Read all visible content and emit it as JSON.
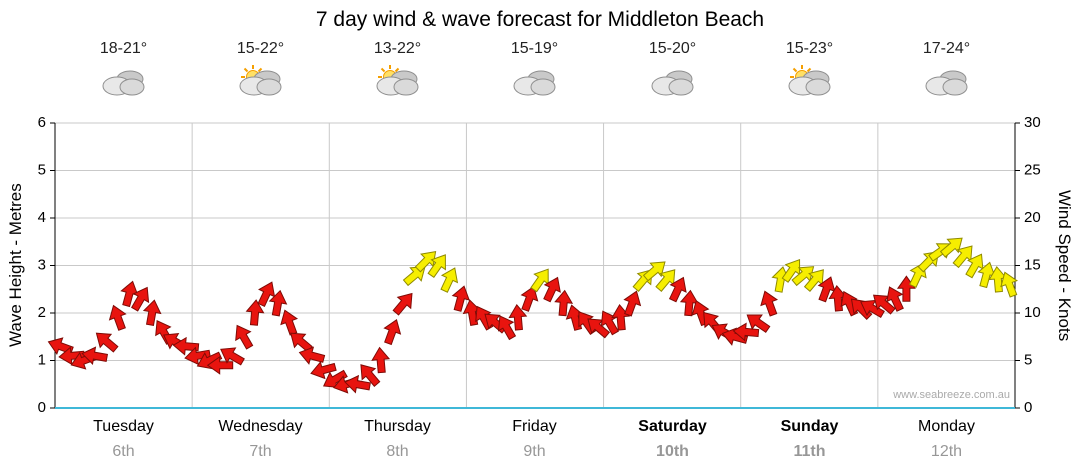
{
  "title": "7 day wind & wave forecast for Middleton Beach",
  "watermark": "www.seabreeze.com.au",
  "axes": {
    "left_label": "Wave Height - Metres",
    "right_label": "Wind Speed - Knots",
    "left_ticks": [
      "0",
      "1",
      "2",
      "3",
      "4",
      "5",
      "6"
    ],
    "right_ticks": [
      "0",
      "5",
      "10",
      "15",
      "20",
      "25",
      "30"
    ],
    "left_max_metres": 6,
    "right_max_knots": 30,
    "baseline_color": "#3fb8d8",
    "grid_color": "#c9c9c9",
    "axis_line_color": "#000000"
  },
  "days": [
    {
      "name": "Tuesday",
      "date": "6th",
      "temp": "18-21°",
      "icon": "cloudy",
      "emphasis": false
    },
    {
      "name": "Wednesday",
      "date": "7th",
      "temp": "15-22°",
      "icon": "partly-sunny",
      "emphasis": false
    },
    {
      "name": "Thursday",
      "date": "8th",
      "temp": "13-22°",
      "icon": "partly-sunny",
      "emphasis": false
    },
    {
      "name": "Friday",
      "date": "9th",
      "temp": "15-19°",
      "icon": "cloudy",
      "emphasis": false
    },
    {
      "name": "Saturday",
      "date": "10th",
      "temp": "15-20°",
      "icon": "cloudy",
      "emphasis": true
    },
    {
      "name": "Sunday",
      "date": "11th",
      "temp": "15-23°",
      "icon": "partly-sunny",
      "emphasis": true
    },
    {
      "name": "Monday",
      "date": "12th",
      "temp": "17-24°",
      "icon": "cloudy",
      "emphasis": false
    }
  ],
  "chart_data": {
    "type": "wind-arrows",
    "title": "7 day wind & wave forecast for Middleton Beach",
    "ylim_left_metres": [
      0,
      6
    ],
    "ylim_right_knots": [
      0,
      30
    ],
    "points_per_day": 12,
    "dir_convention": "degrees; 0 = arrow pointing right (east), counterclockwise positive",
    "colors": {
      "light": "#e8140f",
      "light_stroke": "#7e0b06",
      "strong": "#f6ee00",
      "strong_stroke": "#8f8a00",
      "strong_threshold_knots": 13
    },
    "days": [
      {
        "label": "Tuesday",
        "knots": [
          6.5,
          5.5,
          5,
          5.5,
          7,
          9.5,
          12,
          11.5,
          10,
          8,
          7,
          6.5
        ],
        "dir": [
          160,
          185,
          200,
          170,
          140,
          110,
          75,
          60,
          80,
          120,
          150,
          175
        ]
      },
      {
        "label": "Wednesday",
        "knots": [
          5.5,
          5,
          4.5,
          5.5,
          7.5,
          10,
          12,
          11,
          9,
          7,
          5.5,
          4
        ],
        "dir": [
          190,
          205,
          180,
          150,
          120,
          85,
          65,
          80,
          110,
          140,
          165,
          195
        ]
      },
      {
        "label": "Thursday",
        "knots": [
          3,
          2.5,
          2.5,
          3.5,
          5,
          8,
          11,
          14,
          15.5,
          15,
          13.5,
          11.5
        ],
        "dir": [
          210,
          195,
          170,
          130,
          95,
          70,
          50,
          40,
          45,
          55,
          65,
          75
        ]
      },
      {
        "label": "Friday",
        "knots": [
          10,
          9.5,
          9,
          8.5,
          9.5,
          11.5,
          13.5,
          12.5,
          11,
          9.5,
          9,
          8.5
        ],
        "dir": [
          100,
          120,
          140,
          120,
          95,
          70,
          55,
          65,
          85,
          105,
          125,
          140
        ]
      },
      {
        "label": "Saturday",
        "knots": [
          9,
          9.5,
          11,
          13.5,
          14.5,
          13.5,
          12.5,
          11,
          10,
          9,
          8,
          7.5
        ],
        "dir": [
          120,
          95,
          70,
          50,
          40,
          50,
          65,
          85,
          110,
          130,
          150,
          165
        ]
      },
      {
        "label": "Sunday",
        "knots": [
          8,
          9,
          11,
          13.5,
          14.5,
          14,
          13.5,
          12.5,
          11.5,
          11,
          10.5,
          10.5
        ],
        "dir": [
          175,
          145,
          110,
          80,
          55,
          40,
          50,
          70,
          95,
          115,
          135,
          150
        ]
      },
      {
        "label": "Monday",
        "knots": [
          11,
          11.5,
          12.5,
          14,
          15.5,
          16.5,
          17,
          16,
          15,
          14,
          13.5,
          13
        ],
        "dir": [
          140,
          115,
          90,
          65,
          45,
          35,
          40,
          50,
          60,
          75,
          95,
          110
        ]
      }
    ]
  }
}
